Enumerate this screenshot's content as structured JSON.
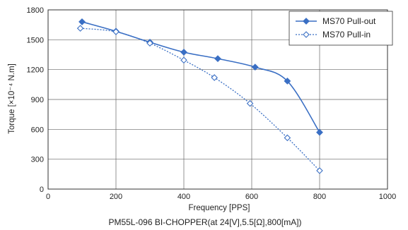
{
  "chart_data": {
    "type": "line",
    "caption": "PM55L-096 BI-CHOPPER(at 24[V],5.5[Ω],800[mA])",
    "xlabel": "Frequency  [PPS]",
    "ylabel": "Torque [×10⁻⁴ N.m]",
    "xlim": [
      0,
      1000
    ],
    "ylim": [
      0,
      1800
    ],
    "xticks": [
      0,
      200,
      400,
      600,
      800,
      1000
    ],
    "yticks": [
      0,
      300,
      600,
      900,
      1200,
      1500,
      1800
    ],
    "grid": true,
    "legend_position": "top-right",
    "series": [
      {
        "name": "MS70  Pull-out",
        "marker": "filled-diamond",
        "line": "solid",
        "color": "#3a6fc4",
        "x": [
          100,
          200,
          300,
          400,
          500,
          610,
          705,
          800
        ],
        "y": [
          1680,
          1585,
          1475,
          1375,
          1310,
          1225,
          1085,
          570
        ]
      },
      {
        "name": "MS70  Pull-in",
        "marker": "open-diamond",
        "line": "dotted",
        "color": "#3a6fc4",
        "x": [
          95,
          200,
          300,
          400,
          490,
          595,
          705,
          800
        ],
        "y": [
          1615,
          1580,
          1465,
          1295,
          1120,
          860,
          515,
          185
        ]
      }
    ]
  }
}
